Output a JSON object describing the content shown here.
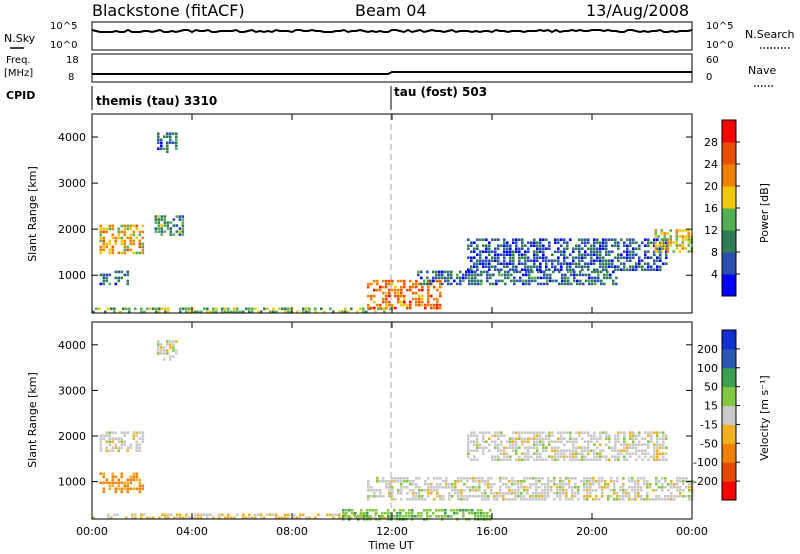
{
  "header": {
    "station": "Blackstone (fitACF)",
    "beam": "Beam 04",
    "date": "13/Aug/2008"
  },
  "panels": {
    "nsky_label": "N.Sky",
    "nsky_ticks": [
      "10^5",
      "10^0"
    ],
    "nsearch_label": "N.Search",
    "freq_label_1": "Freq.",
    "freq_label_2": "[MHz]",
    "freq_ticks": [
      "18",
      "8"
    ],
    "nave_ticks": [
      "60",
      "0"
    ],
    "nave_label": "Nave",
    "cpid_label": "CPID",
    "cpid_segments": [
      "themis (tau) 3310",
      "tau (fost) 503"
    ]
  },
  "colors": {
    "power_scale": [
      "#0000ff",
      "#2a4fb0",
      "#2f7d54",
      "#52b052",
      "#f0c800",
      "#f08000",
      "#e85000",
      "#ff0000"
    ],
    "velocity_scale": [
      "#ff0000",
      "#e84800",
      "#f08000",
      "#f0b020",
      "#c8c8c8",
      "#80c840",
      "#3ca050",
      "#2a5ab0",
      "#1030d0"
    ]
  },
  "chart_data": [
    {
      "type": "heatmap",
      "title": "",
      "ylabel": "Slant Range [km]",
      "ylim": [
        180,
        4500
      ],
      "yticks": [
        "1000",
        "2000",
        "3000",
        "4000"
      ],
      "xticks": [],
      "colorbar_label": "Power [dB]",
      "colorbar_ticks": [
        "4",
        "8",
        "12",
        "16",
        "20",
        "24",
        "28"
      ],
      "regions": [
        {
          "t0": 0.3,
          "t1": 2.1,
          "r0": 1500,
          "r1": 2100,
          "value": 20
        },
        {
          "t0": 0.3,
          "t1": 1.5,
          "r0": 800,
          "r1": 1100,
          "value": 8
        },
        {
          "t0": 2.6,
          "t1": 3.4,
          "r0": 3700,
          "r1": 4100,
          "value": 8
        },
        {
          "t0": 2.5,
          "t1": 3.6,
          "r0": 1900,
          "r1": 2300,
          "value": 12
        },
        {
          "t0": 0.0,
          "t1": 12.0,
          "r0": 180,
          "r1": 300,
          "value": 14
        },
        {
          "t0": 11.0,
          "t1": 14.0,
          "r0": 300,
          "r1": 900,
          "value": 24
        },
        {
          "t0": 13.0,
          "t1": 21.0,
          "r0": 800,
          "r1": 1100,
          "value": 8
        },
        {
          "t0": 15.0,
          "t1": 23.0,
          "r0": 1100,
          "r1": 1800,
          "value": 6
        },
        {
          "t0": 22.5,
          "t1": 24.0,
          "r0": 1500,
          "r1": 2000,
          "value": 18
        }
      ]
    },
    {
      "type": "heatmap",
      "title": "",
      "ylabel": "Slant Range [km]",
      "ylim": [
        180,
        4500
      ],
      "yticks": [
        "1000",
        "2000",
        "3000",
        "4000"
      ],
      "xlabel": "Time UT",
      "xticks": [
        "00:00",
        "04:00",
        "08:00",
        "12:00",
        "16:00",
        "20:00",
        "00:00"
      ],
      "colorbar_label": "Velocity [m s⁻¹]",
      "colorbar_ticks": [
        "-200",
        "-100",
        "-50",
        "-15",
        "15",
        "50",
        "100",
        "200"
      ],
      "regions": [
        {
          "t0": 0.3,
          "t1": 2.1,
          "r0": 1700,
          "r1": 2100,
          "value": 0
        },
        {
          "t0": 0.3,
          "t1": 2.0,
          "r0": 800,
          "r1": 1200,
          "value": -60
        },
        {
          "t0": 2.6,
          "t1": 3.4,
          "r0": 3700,
          "r1": 4100,
          "value": 0
        },
        {
          "t0": 0.0,
          "t1": 12.0,
          "r0": 180,
          "r1": 300,
          "value": -20
        },
        {
          "t0": 11.0,
          "t1": 24.0,
          "r0": 600,
          "r1": 1100,
          "value": 0
        },
        {
          "t0": 15.0,
          "t1": 23.0,
          "r0": 1500,
          "r1": 2100,
          "value": 0
        },
        {
          "t0": 10.0,
          "t1": 16.0,
          "r0": 180,
          "r1": 400,
          "value": 40
        }
      ]
    }
  ]
}
